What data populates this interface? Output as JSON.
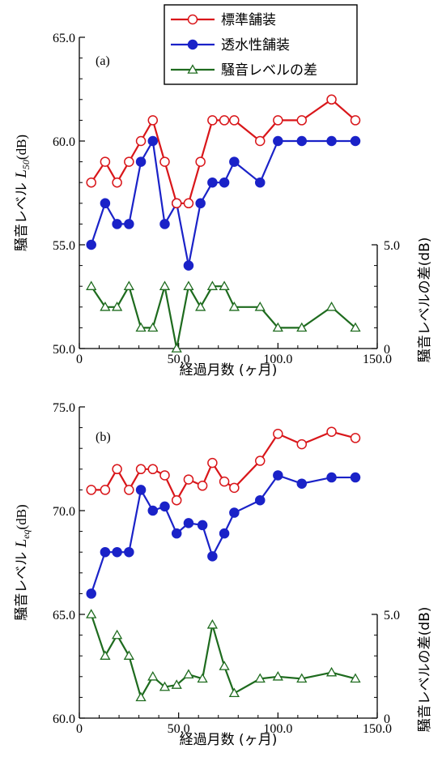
{
  "colors": {
    "standard": "#d9161a",
    "porous": "#1a22c8",
    "diff": "#1e6b1e",
    "axis": "#000000"
  },
  "legend": [
    {
      "label": "標準舗装",
      "series": "standard",
      "marker": "open-circle"
    },
    {
      "label": "透水性舗装",
      "series": "porous",
      "marker": "filled-circle"
    },
    {
      "label": "騒音レベルの差",
      "series": "diff",
      "marker": "open-triangle"
    }
  ],
  "chart_data": [
    {
      "type": "line",
      "panel_label": "(a)",
      "xlabel": "経過月数 (ヶ月)",
      "ylabel_prefix": "騒音レベル ",
      "ylabel_var": "L",
      "ylabel_sub": "50",
      "ylabel_unit": "(dB)",
      "y2label": "騒音レベルの差(dB)",
      "xlim": [
        0,
        150
      ],
      "ylim": [
        50,
        65
      ],
      "y2lim": [
        0,
        15
      ],
      "xticks": [
        "0",
        "50.0",
        "100.0",
        "150.0"
      ],
      "yticks": [
        "50.0",
        "55.0",
        "60.0",
        "65.0"
      ],
      "y2ticks": [
        "0",
        "5.0"
      ],
      "x": [
        6,
        13,
        19,
        25,
        31,
        37,
        43,
        49,
        55,
        61,
        67,
        73,
        78,
        91,
        100,
        112,
        127,
        139
      ],
      "series": [
        {
          "name": "標準舗装",
          "key": "standard",
          "values": [
            58,
            59,
            58,
            59,
            60,
            61,
            59,
            57,
            57,
            59,
            61,
            61,
            61,
            60,
            61,
            61,
            62,
            61
          ]
        },
        {
          "name": "透水性舗装",
          "key": "porous",
          "values": [
            55,
            57,
            56,
            56,
            59,
            60,
            56,
            57,
            54,
            57,
            58,
            58,
            59,
            58,
            60,
            60,
            60,
            60
          ]
        },
        {
          "name": "騒音レベルの差",
          "key": "diff",
          "axis": "right",
          "values": [
            3,
            2,
            2,
            3,
            1,
            1,
            3,
            0,
            3,
            2,
            3,
            3,
            2,
            2,
            1,
            1,
            2,
            1
          ]
        }
      ]
    },
    {
      "type": "line",
      "panel_label": "(b)",
      "xlabel": "経過月数 (ヶ月)",
      "ylabel_prefix": "騒音レベル ",
      "ylabel_var": "L",
      "ylabel_sub": "eq",
      "ylabel_unit": "(dB)",
      "y2label": "騒音レベルの差(dB)",
      "xlim": [
        0,
        150
      ],
      "ylim": [
        60,
        75
      ],
      "y2lim": [
        0,
        15
      ],
      "xticks": [
        "0",
        "50.0",
        "100.0",
        "150.0"
      ],
      "yticks": [
        "60.0",
        "65.0",
        "70.0",
        "75.0"
      ],
      "y2ticks": [
        "0",
        "5.0"
      ],
      "x": [
        6,
        13,
        19,
        25,
        31,
        37,
        43,
        49,
        55,
        62,
        67,
        73,
        78,
        91,
        100,
        112,
        127,
        139
      ],
      "series": [
        {
          "name": "標準舗装",
          "key": "standard",
          "values": [
            71.0,
            71.0,
            72.0,
            71.0,
            72.0,
            72.0,
            71.7,
            70.5,
            71.5,
            71.2,
            72.3,
            71.4,
            71.1,
            72.4,
            73.7,
            73.2,
            73.8,
            73.5
          ]
        },
        {
          "name": "透水性舗装",
          "key": "porous",
          "values": [
            66.0,
            68.0,
            68.0,
            68.0,
            71.0,
            70.0,
            70.2,
            68.9,
            69.4,
            69.3,
            67.8,
            68.9,
            69.9,
            70.5,
            71.7,
            71.3,
            71.6,
            71.6
          ]
        },
        {
          "name": "騒音レベルの差",
          "key": "diff",
          "axis": "right",
          "values": [
            5.0,
            3.0,
            4.0,
            3.0,
            1.0,
            2.0,
            1.5,
            1.6,
            2.1,
            1.9,
            4.5,
            2.5,
            1.2,
            1.9,
            2.0,
            1.9,
            2.2,
            1.9
          ]
        }
      ]
    }
  ]
}
